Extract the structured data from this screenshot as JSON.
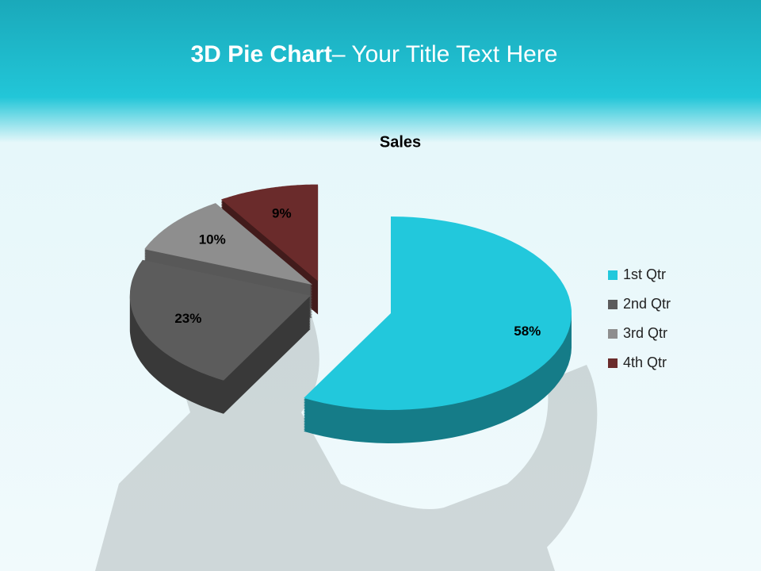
{
  "slide": {
    "title_bold": "3D Pie Chart",
    "title_rest": "– Your Title Text Here"
  },
  "chart_data": {
    "type": "pie",
    "title": "Sales",
    "categories": [
      "1st Qtr",
      "2nd Qtr",
      "3rd Qtr",
      "4th Qtr"
    ],
    "values": [
      58,
      23,
      10,
      9
    ],
    "value_labels": [
      "58%",
      "23%",
      "10%",
      "9%"
    ],
    "colors": [
      "#22c8dc",
      "#5c5c5c",
      "#8e8e8e",
      "#6a2b2b"
    ],
    "legend": "right"
  }
}
